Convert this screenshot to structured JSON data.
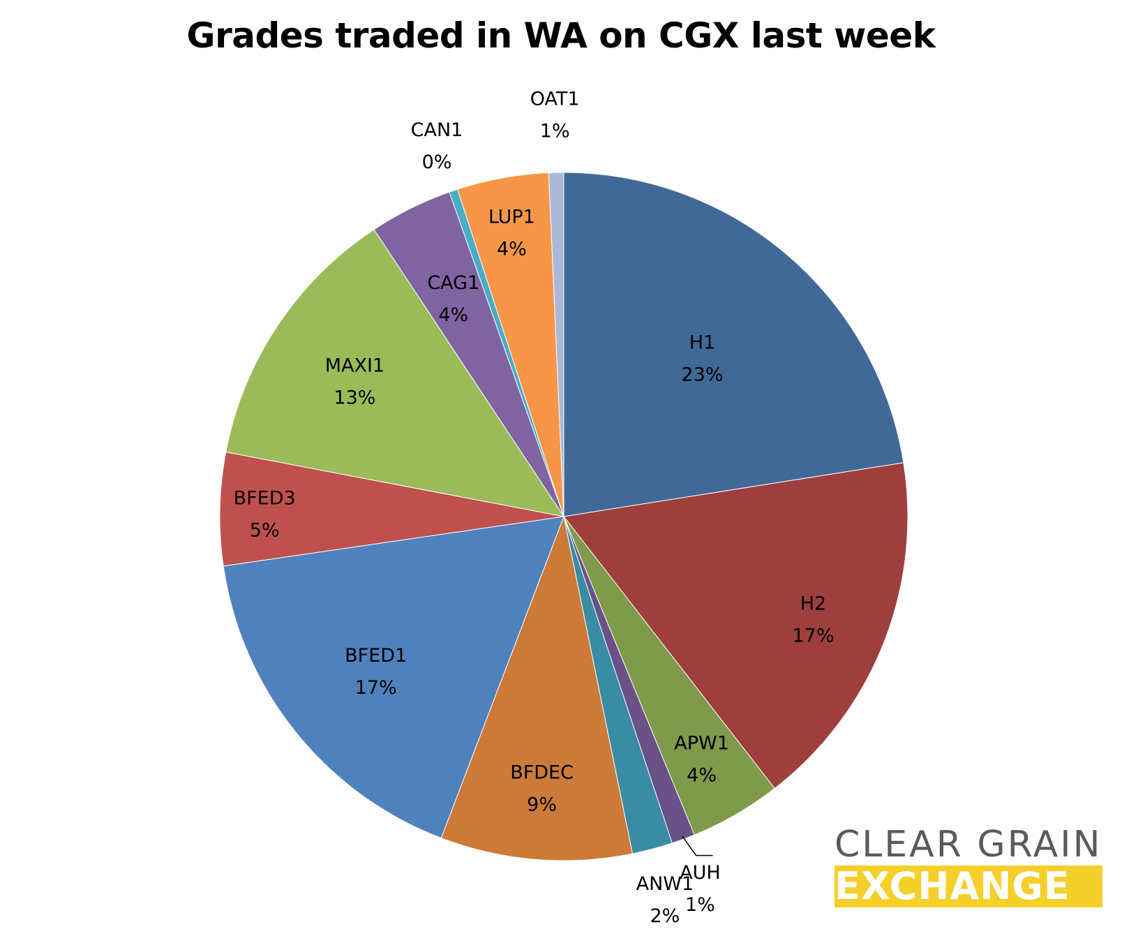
{
  "chart_data": {
    "type": "pie",
    "title": "Grades traded in WA on CGX last week",
    "start_angle_deg": 0,
    "direction": "clockwise",
    "slices": [
      {
        "label": "H1",
        "value": 22.5,
        "pct_label": "23%",
        "color": "#416998"
      },
      {
        "label": "H2",
        "value": 17.0,
        "pct_label": "17%",
        "color": "#9e3f3e"
      },
      {
        "label": "APW1",
        "value": 4.3,
        "pct_label": "4%",
        "color": "#7f9a4a"
      },
      {
        "label": "AUH",
        "value": 1.1,
        "pct_label": "1%",
        "color": "#6a5289"
      },
      {
        "label": "ANW1",
        "value": 1.9,
        "pct_label": "2%",
        "color": "#3a8ba4"
      },
      {
        "label": "BFDEC",
        "value": 9.0,
        "pct_label": "9%",
        "color": "#cc7a38"
      },
      {
        "label": "BFED1",
        "value": 16.9,
        "pct_label": "17%",
        "color": "#4f81bd"
      },
      {
        "label": "BFED3",
        "value": 5.3,
        "pct_label": "5%",
        "color": "#c0504d"
      },
      {
        "label": "MAXI1",
        "value": 12.7,
        "pct_label": "13%",
        "color": "#9bbb59"
      },
      {
        "label": "CAG1",
        "value": 3.9,
        "pct_label": "4%",
        "color": "#8064a2"
      },
      {
        "label": "CAN1",
        "value": 0.4,
        "pct_label": "0%",
        "color": "#4bacc6"
      },
      {
        "label": "LUP1",
        "value": 4.3,
        "pct_label": "4%",
        "color": "#f79646"
      },
      {
        "label": "OAT1",
        "value": 0.7,
        "pct_label": "1%",
        "color": "#aab9d8"
      }
    ]
  },
  "logo": {
    "line1": "CLEAR GRAIN",
    "line2": "EXCHANGE",
    "color_dark": "#5a5a5a",
    "color_accent": "#f5cf2a"
  }
}
